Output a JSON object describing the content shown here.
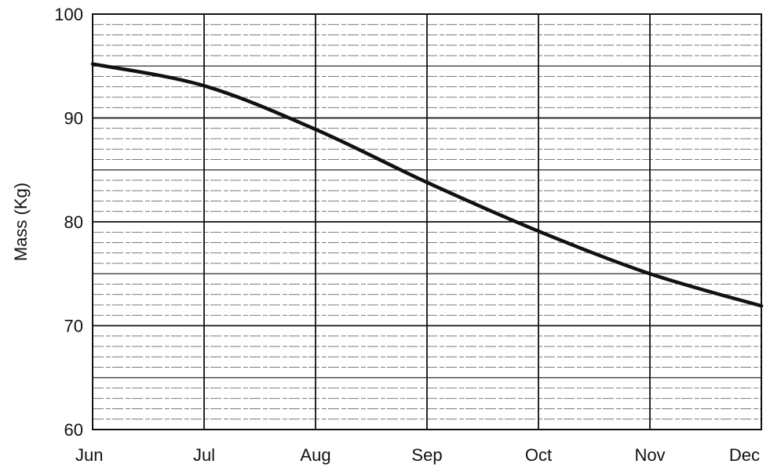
{
  "chart_data": {
    "type": "line",
    "title": "",
    "xlabel": "",
    "ylabel": "Mass (Kg)",
    "categories": [
      "Jun",
      "Jul",
      "Aug",
      "Sep",
      "Oct",
      "Nov",
      "Dec"
    ],
    "x": [
      0,
      1,
      2,
      3,
      4,
      5,
      6
    ],
    "series": [
      {
        "values": [
          95.2,
          93.1,
          88.9,
          83.8,
          79.1,
          75.0,
          71.9
        ]
      }
    ],
    "ylim": [
      60,
      100
    ],
    "yticks": [
      60,
      70,
      80,
      90,
      100
    ],
    "grid": true,
    "line_color": "#111111",
    "grid_color": "#222222"
  }
}
